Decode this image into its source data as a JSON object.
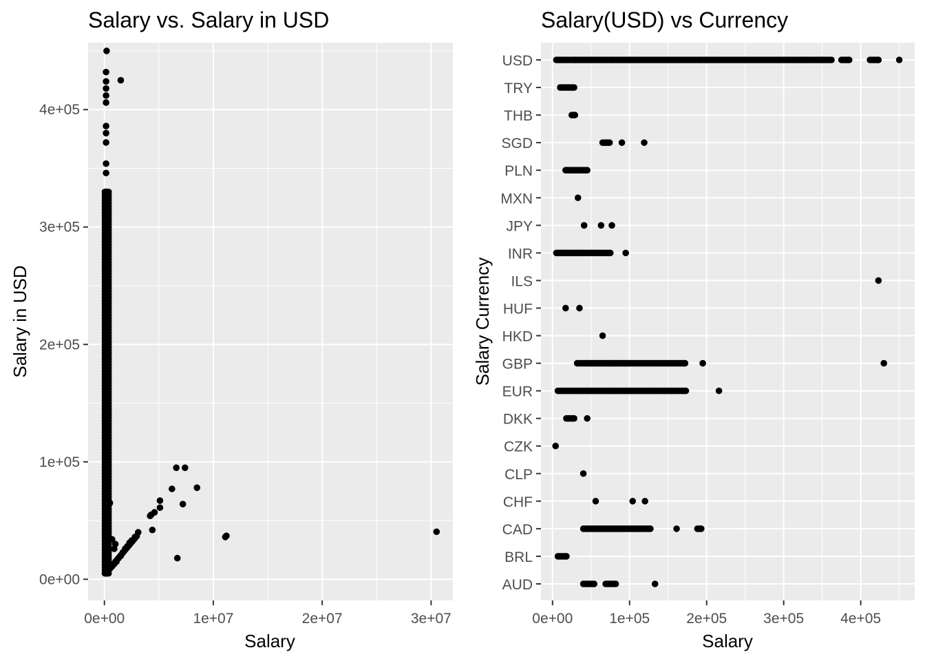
{
  "chart_data": [
    {
      "type": "scatter",
      "title": "Salary vs. Salary in USD",
      "xlabel": "Salary",
      "ylabel": "Salary in USD",
      "xlim": [
        -1500000,
        32000000
      ],
      "ylim": [
        -18000,
        457000
      ],
      "x_ticks": [
        0,
        10000000,
        20000000,
        30000000
      ],
      "x_tick_labels": [
        "0e+00",
        "1e+07",
        "2e+07",
        "3e+07"
      ],
      "y_ticks": [
        0,
        100000,
        200000,
        300000,
        400000
      ],
      "y_tick_labels": [
        "0e+00",
        "1e+05",
        "2e+05",
        "3e+05",
        "4e+05"
      ],
      "grid": true,
      "clusters": [
        {
          "x": [
            30000,
            40000,
            50000,
            60000,
            70000,
            80000,
            90000,
            100000,
            120000,
            150000,
            180000,
            200000,
            250000,
            300000,
            350000,
            400000
          ],
          "y_range": [
            5000,
            450000
          ],
          "note": "dense vertical band near x=0"
        },
        {
          "x_range": [
            100000,
            3000000
          ],
          "y_range": [
            5000,
            40000
          ],
          "note": "low-rate currency diagonal"
        }
      ],
      "points": [
        {
          "x": 200000,
          "y": 450000
        },
        {
          "x": 150000,
          "y": 432000
        },
        {
          "x": 1500000,
          "y": 425000
        },
        {
          "x": 150000,
          "y": 424000
        },
        {
          "x": 150000,
          "y": 418000
        },
        {
          "x": 150000,
          "y": 412000
        },
        {
          "x": 150000,
          "y": 406000
        },
        {
          "x": 150000,
          "y": 386000
        },
        {
          "x": 150000,
          "y": 380000
        },
        {
          "x": 150000,
          "y": 372000
        },
        {
          "x": 150000,
          "y": 354000
        },
        {
          "x": 150000,
          "y": 346000
        },
        {
          "x": 150000,
          "y": 330000
        },
        {
          "x": 150000,
          "y": 322000
        },
        {
          "x": 6600000,
          "y": 95000
        },
        {
          "x": 7400000,
          "y": 95000
        },
        {
          "x": 8500000,
          "y": 78000
        },
        {
          "x": 6200000,
          "y": 77000
        },
        {
          "x": 5100000,
          "y": 67000
        },
        {
          "x": 7200000,
          "y": 64000
        },
        {
          "x": 5100000,
          "y": 61000
        },
        {
          "x": 4600000,
          "y": 57000
        },
        {
          "x": 4300000,
          "y": 55000
        },
        {
          "x": 4200000,
          "y": 54000
        },
        {
          "x": 4400000,
          "y": 42000
        },
        {
          "x": 11200000,
          "y": 37000
        },
        {
          "x": 11100000,
          "y": 36000
        },
        {
          "x": 30500000,
          "y": 40500
        },
        {
          "x": 6700000,
          "y": 18000
        },
        {
          "x": 3100000,
          "y": 40000
        },
        {
          "x": 2800000,
          "y": 36000
        },
        {
          "x": 2500000,
          "y": 33000
        },
        {
          "x": 2300000,
          "y": 31000
        },
        {
          "x": 2100000,
          "y": 28000
        },
        {
          "x": 1900000,
          "y": 26000
        },
        {
          "x": 1700000,
          "y": 23000
        },
        {
          "x": 1500000,
          "y": 20000
        },
        {
          "x": 1300000,
          "y": 18000
        },
        {
          "x": 1100000,
          "y": 15000
        },
        {
          "x": 900000,
          "y": 13000
        },
        {
          "x": 700000,
          "y": 11000
        },
        {
          "x": 500000,
          "y": 9000
        },
        {
          "x": 700000,
          "y": 34000
        },
        {
          "x": 1000000,
          "y": 30000
        },
        {
          "x": 900000,
          "y": 26000
        },
        {
          "x": 400000,
          "y": 25000
        },
        {
          "x": 500000,
          "y": 65000
        },
        {
          "x": 350000,
          "y": 20000
        }
      ]
    },
    {
      "type": "scatter",
      "title": "Salary(USD) vs Currency",
      "xlabel": "Salary",
      "ylabel": "Salary Currency",
      "xlim": [
        -15000,
        470000
      ],
      "x_ticks": [
        0,
        100000,
        200000,
        300000,
        400000
      ],
      "x_tick_labels": [
        "0e+00",
        "1e+05",
        "2e+05",
        "3e+05",
        "4e+05"
      ],
      "categories": [
        "AUD",
        "BRL",
        "CAD",
        "CHF",
        "CLP",
        "CZK",
        "DKK",
        "EUR",
        "GBP",
        "HKD",
        "HUF",
        "ILS",
        "INR",
        "JPY",
        "MXN",
        "PLN",
        "SGD",
        "THB",
        "TRY",
        "USD"
      ],
      "grid": true,
      "series": [
        {
          "category": "AUD",
          "x": [
            40000,
            47000,
            54000,
            69000,
            75000,
            82000,
            133000
          ]
        },
        {
          "category": "BRL",
          "x": [
            7000,
            11000,
            18000
          ]
        },
        {
          "category": "CAD",
          "x": [
            40000,
            50000,
            55000,
            63000,
            67000,
            72000,
            77000,
            86000,
            92000,
            98000,
            105000,
            112000,
            120000,
            127000,
            161000,
            188000,
            193000
          ]
        },
        {
          "category": "CHF",
          "x": [
            56000,
            104000,
            120000
          ]
        },
        {
          "category": "CLP",
          "x": [
            40000
          ]
        },
        {
          "category": "CZK",
          "x": [
            4000
          ]
        },
        {
          "category": "DKK",
          "x": [
            18000,
            28000,
            45000
          ]
        },
        {
          "category": "EUR",
          "x": [
            7000,
            15000,
            23000,
            30000,
            35000,
            40000,
            45000,
            50000,
            55000,
            60000,
            65000,
            70000,
            75000,
            80000,
            85000,
            90000,
            95000,
            100000,
            105000,
            110000,
            115000,
            120000,
            125000,
            130000,
            140000,
            145000,
            150000,
            155000,
            161000,
            170000,
            173000,
            216000
          ]
        },
        {
          "category": "GBP",
          "x": [
            32000,
            40000,
            45000,
            50000,
            55000,
            60000,
            65000,
            70000,
            75000,
            80000,
            85000,
            90000,
            95000,
            100000,
            106000,
            112000,
            118000,
            124000,
            130000,
            137000,
            143000,
            148000,
            156000,
            163000,
            172000,
            195000,
            430000
          ]
        },
        {
          "category": "HKD",
          "x": [
            65000
          ]
        },
        {
          "category": "HUF",
          "x": [
            17000,
            35000
          ]
        },
        {
          "category": "ILS",
          "x": [
            423000
          ]
        },
        {
          "category": "INR",
          "x": [
            5000,
            8000,
            11000,
            14000,
            17000,
            20000,
            23000,
            26000,
            29000,
            32000,
            35000,
            38000,
            41000,
            50000,
            55000,
            60000,
            66000,
            75000,
            95000
          ]
        },
        {
          "category": "JPY",
          "x": [
            41000,
            63000,
            77000
          ]
        },
        {
          "category": "MXN",
          "x": [
            33000
          ]
        },
        {
          "category": "PLN",
          "x": [
            17000,
            29000,
            35000,
            45000
          ]
        },
        {
          "category": "SGD",
          "x": [
            65000,
            74000,
            90000,
            119000
          ]
        },
        {
          "category": "THB",
          "x": [
            25000,
            29000
          ]
        },
        {
          "category": "TRY",
          "x": [
            10000,
            18000,
            28000
          ]
        },
        {
          "category": "USD",
          "x": [
            5000,
            15000,
            25000,
            30000,
            40000,
            50000,
            60000,
            70000,
            80000,
            90000,
            100000,
            110000,
            120000,
            130000,
            140000,
            150000,
            160000,
            170000,
            180000,
            190000,
            200000,
            210000,
            220000,
            230000,
            240000,
            250000,
            260000,
            270000,
            280000,
            290000,
            300000,
            310000,
            320000,
            325000,
            330000,
            340000,
            345000,
            350000,
            362000,
            375000,
            382000,
            385000,
            412000,
            418000,
            423000,
            450000
          ]
        }
      ]
    }
  ]
}
